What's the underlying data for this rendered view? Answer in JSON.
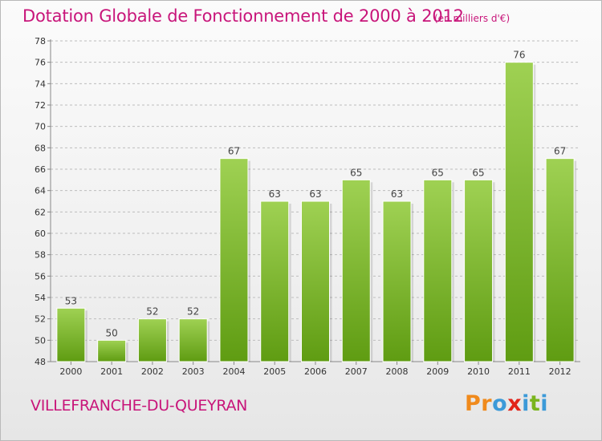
{
  "header": {
    "title": "Dotation Globale de Fonctionnement de 2000 à 2012",
    "unit": "(en milliers d'€)"
  },
  "footer": {
    "commune": "VILLEFRANCHE-DU-QUEYRAN",
    "logo_letters": [
      "P",
      "r",
      "o",
      "x",
      "i",
      "t",
      "i"
    ],
    "logo_colors": [
      "#f08a1c",
      "#f08a1c",
      "#3c9ad8",
      "#e2241a",
      "#3c9ad8",
      "#7ab51d",
      "#3c9ad8"
    ]
  },
  "colors": {
    "title": "#c8157a",
    "bar_light": "#9fd153",
    "bar_dark": "#5f9c12",
    "grid": "#bdbdbd"
  },
  "chart_data": {
    "type": "bar",
    "title": "Dotation Globale de Fonctionnement de 2000 à 2012",
    "subtitle": "(en milliers d'€)",
    "xlabel": "",
    "ylabel": "",
    "categories": [
      "2000",
      "2001",
      "2002",
      "2003",
      "2004",
      "2005",
      "2006",
      "2007",
      "2008",
      "2009",
      "2010",
      "2011",
      "2012"
    ],
    "values": [
      53,
      50,
      52,
      52,
      67,
      63,
      63,
      65,
      63,
      65,
      65,
      76,
      67
    ],
    "ylim": [
      48,
      78
    ],
    "yticks": [
      48,
      50,
      52,
      54,
      56,
      58,
      60,
      62,
      64,
      66,
      68,
      70,
      72,
      74,
      76,
      78
    ],
    "grid": true,
    "legend": "none"
  }
}
